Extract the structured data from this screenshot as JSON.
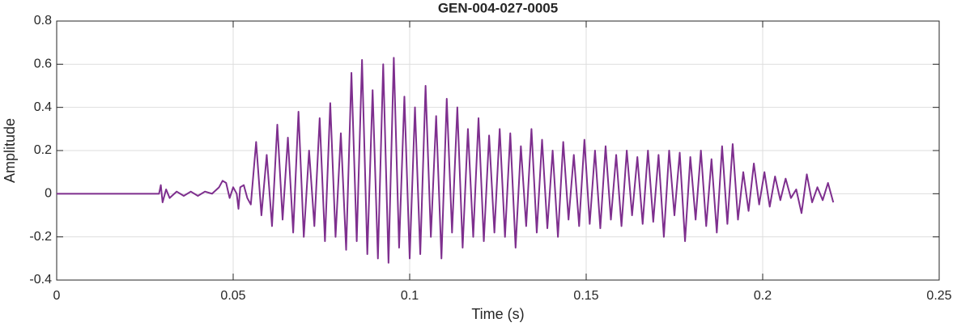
{
  "chart_data": {
    "type": "line",
    "title": "GEN-004-027-0005",
    "x_label": "Time (s)",
    "y_label": "Amplitude",
    "grid": true,
    "xlim": [
      0,
      0.25
    ],
    "xticks": [
      0,
      0.05,
      0.1,
      0.15,
      0.2,
      0.25
    ],
    "ylim": [
      -0.4,
      0.8
    ],
    "yticks": [
      -0.4,
      -0.2,
      0,
      0.2,
      0.4,
      0.6,
      0.8
    ],
    "x": [
      0,
      0.005,
      0.01,
      0.015,
      0.02,
      0.025,
      0.029,
      0.0295,
      0.03,
      0.031,
      0.032,
      0.034,
      0.036,
      0.038,
      0.04,
      0.042,
      0.044,
      0.046,
      0.047,
      0.048,
      0.049,
      0.05,
      0.051,
      0.0515,
      0.052,
      0.053,
      0.054,
      0.055,
      0.0565,
      0.058,
      0.0595,
      0.061,
      0.0625,
      0.064,
      0.0655,
      0.067,
      0.0685,
      0.07,
      0.0715,
      0.073,
      0.0745,
      0.076,
      0.0775,
      0.079,
      0.0805,
      0.082,
      0.0835,
      0.085,
      0.0865,
      0.088,
      0.0895,
      0.091,
      0.0925,
      0.094,
      0.0955,
      0.097,
      0.0985,
      0.1,
      0.1015,
      0.103,
      0.1045,
      0.106,
      0.1075,
      0.109,
      0.1105,
      0.112,
      0.1135,
      0.115,
      0.1165,
      0.118,
      0.1195,
      0.121,
      0.1225,
      0.124,
      0.1255,
      0.127,
      0.1285,
      0.13,
      0.1315,
      0.133,
      0.1345,
      0.136,
      0.1375,
      0.139,
      0.1405,
      0.142,
      0.1435,
      0.145,
      0.1465,
      0.148,
      0.1495,
      0.151,
      0.1525,
      0.154,
      0.1555,
      0.157,
      0.1585,
      0.16,
      0.1615,
      0.163,
      0.1645,
      0.166,
      0.1675,
      0.169,
      0.1705,
      0.172,
      0.1735,
      0.175,
      0.1765,
      0.178,
      0.1795,
      0.181,
      0.1825,
      0.184,
      0.1855,
      0.187,
      0.1885,
      0.19,
      0.1915,
      0.193,
      0.1945,
      0.196,
      0.1975,
      0.199,
      0.2005,
      0.202,
      0.2035,
      0.205,
      0.2065,
      0.208,
      0.2095,
      0.211,
      0.2125,
      0.214,
      0.2155,
      0.217,
      0.2185,
      0.22
    ],
    "series": [
      {
        "color": "#7e2f8e",
        "values": [
          0,
          0,
          0,
          0,
          0,
          0,
          0,
          0.04,
          -0.04,
          0.02,
          -0.02,
          0.01,
          -0.01,
          0.01,
          -0.01,
          0.01,
          0,
          0.03,
          0.06,
          0.05,
          -0.02,
          0.03,
          0,
          -0.07,
          0.03,
          0.04,
          -0.02,
          -0.05,
          0.24,
          -0.1,
          0.18,
          -0.15,
          0.32,
          -0.12,
          0.26,
          -0.18,
          0.38,
          -0.2,
          0.2,
          -0.15,
          0.35,
          -0.22,
          0.42,
          -0.2,
          0.28,
          -0.26,
          0.56,
          -0.22,
          0.62,
          -0.28,
          0.48,
          -0.3,
          0.6,
          -0.32,
          0.63,
          -0.25,
          0.45,
          -0.3,
          0.4,
          -0.28,
          0.5,
          -0.2,
          0.36,
          -0.3,
          0.44,
          -0.18,
          0.4,
          -0.25,
          0.3,
          -0.2,
          0.35,
          -0.22,
          0.27,
          -0.18,
          0.3,
          -0.2,
          0.28,
          -0.25,
          0.22,
          -0.15,
          0.3,
          -0.18,
          0.25,
          -0.16,
          0.2,
          -0.2,
          0.24,
          -0.12,
          0.18,
          -0.15,
          0.25,
          -0.14,
          0.2,
          -0.16,
          0.22,
          -0.12,
          0.18,
          -0.15,
          0.2,
          -0.1,
          0.17,
          -0.14,
          0.2,
          -0.13,
          0.18,
          -0.2,
          0.2,
          -0.1,
          0.19,
          -0.22,
          0.17,
          -0.12,
          0.2,
          -0.15,
          0.16,
          -0.18,
          0.22,
          -0.14,
          0.23,
          -0.12,
          0.1,
          -0.08,
          0.14,
          -0.05,
          0.1,
          -0.06,
          0.08,
          -0.03,
          0.07,
          -0.02,
          0.02,
          -0.09,
          0.09,
          -0.04,
          0.03,
          -0.03,
          0.05,
          -0.04
        ]
      }
    ]
  }
}
